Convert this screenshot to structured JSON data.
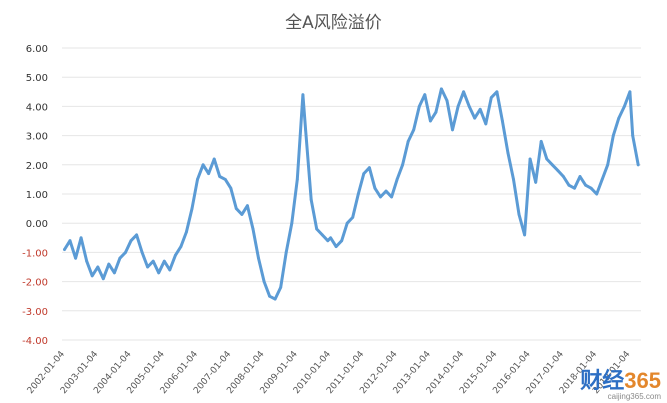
{
  "chart_data": {
    "type": "line",
    "title": "全A风险溢价",
    "xlabel": "",
    "ylabel": "",
    "ylim": [
      -4,
      6
    ],
    "yticks": [
      "6.00",
      "5.00",
      "4.00",
      "3.00",
      "2.00",
      "1.00",
      "0.00",
      "-1.00",
      "-2.00",
      "-3.00",
      "-4.00"
    ],
    "negative_tick_color": "#c0392b",
    "xticks": [
      "2002-01-04",
      "2003-01-04",
      "2004-01-04",
      "2005-01-04",
      "2006-01-04",
      "2007-01-04",
      "2008-01-04",
      "2009-01-04",
      "2010-01-04",
      "2011-01-04",
      "2012-01-04",
      "2013-01-04",
      "2014-01-04",
      "2015-01-04",
      "2016-01-04",
      "2017-01-04",
      "2018-01-04",
      "2019-01-04"
    ],
    "grid": true,
    "legend": "none",
    "line_color": "#5b9bd5",
    "series": [
      {
        "points": [
          [
            "2002-01",
            -0.9
          ],
          [
            "2002-03",
            -0.6
          ],
          [
            "2002-05",
            -1.2
          ],
          [
            "2002-07",
            -0.5
          ],
          [
            "2002-09",
            -1.3
          ],
          [
            "2002-11",
            -1.8
          ],
          [
            "2003-01",
            -1.5
          ],
          [
            "2003-03",
            -1.9
          ],
          [
            "2003-05",
            -1.4
          ],
          [
            "2003-07",
            -1.7
          ],
          [
            "2003-09",
            -1.2
          ],
          [
            "2003-11",
            -1.0
          ],
          [
            "2004-01",
            -0.6
          ],
          [
            "2004-03",
            -0.4
          ],
          [
            "2004-05",
            -1.0
          ],
          [
            "2004-07",
            -1.5
          ],
          [
            "2004-09",
            -1.3
          ],
          [
            "2004-11",
            -1.7
          ],
          [
            "2005-01",
            -1.3
          ],
          [
            "2005-03",
            -1.6
          ],
          [
            "2005-05",
            -1.1
          ],
          [
            "2005-07",
            -0.8
          ],
          [
            "2005-09",
            -0.3
          ],
          [
            "2005-11",
            0.5
          ],
          [
            "2006-01",
            1.5
          ],
          [
            "2006-03",
            2.0
          ],
          [
            "2006-05",
            1.7
          ],
          [
            "2006-07",
            2.2
          ],
          [
            "2006-09",
            1.6
          ],
          [
            "2006-11",
            1.5
          ],
          [
            "2007-01",
            1.2
          ],
          [
            "2007-03",
            0.5
          ],
          [
            "2007-05",
            0.3
          ],
          [
            "2007-07",
            0.6
          ],
          [
            "2007-09",
            -0.2
          ],
          [
            "2007-11",
            -1.2
          ],
          [
            "2008-01",
            -2.0
          ],
          [
            "2008-03",
            -2.5
          ],
          [
            "2008-05",
            -2.6
          ],
          [
            "2008-07",
            -2.2
          ],
          [
            "2008-09",
            -1.0
          ],
          [
            "2008-11",
            0.0
          ],
          [
            "2009-01",
            1.5
          ],
          [
            "2009-03",
            4.4
          ],
          [
            "2009-04",
            3.2
          ],
          [
            "2009-06",
            0.8
          ],
          [
            "2009-08",
            -0.2
          ],
          [
            "2009-10",
            -0.4
          ],
          [
            "2009-12",
            -0.6
          ],
          [
            "2010-01",
            -0.5
          ],
          [
            "2010-03",
            -0.8
          ],
          [
            "2010-05",
            -0.6
          ],
          [
            "2010-07",
            0.0
          ],
          [
            "2010-09",
            0.2
          ],
          [
            "2010-11",
            1.0
          ],
          [
            "2011-01",
            1.7
          ],
          [
            "2011-03",
            1.9
          ],
          [
            "2011-05",
            1.2
          ],
          [
            "2011-07",
            0.9
          ],
          [
            "2011-09",
            1.1
          ],
          [
            "2011-11",
            0.9
          ],
          [
            "2012-01",
            1.5
          ],
          [
            "2012-03",
            2.0
          ],
          [
            "2012-05",
            2.8
          ],
          [
            "2012-07",
            3.2
          ],
          [
            "2012-09",
            4.0
          ],
          [
            "2012-11",
            4.4
          ],
          [
            "2013-01",
            3.5
          ],
          [
            "2013-03",
            3.8
          ],
          [
            "2013-05",
            4.6
          ],
          [
            "2013-07",
            4.2
          ],
          [
            "2013-09",
            3.2
          ],
          [
            "2013-11",
            4.0
          ],
          [
            "2014-01",
            4.5
          ],
          [
            "2014-03",
            4.0
          ],
          [
            "2014-05",
            3.6
          ],
          [
            "2014-07",
            3.9
          ],
          [
            "2014-09",
            3.4
          ],
          [
            "2014-11",
            4.3
          ],
          [
            "2015-01",
            4.5
          ],
          [
            "2015-03",
            3.5
          ],
          [
            "2015-05",
            2.4
          ],
          [
            "2015-07",
            1.5
          ],
          [
            "2015-09",
            0.3
          ],
          [
            "2015-11",
            -0.4
          ],
          [
            "2016-01",
            2.2
          ],
          [
            "2016-03",
            1.4
          ],
          [
            "2016-05",
            2.8
          ],
          [
            "2016-07",
            2.2
          ],
          [
            "2016-09",
            2.0
          ],
          [
            "2016-11",
            1.8
          ],
          [
            "2017-01",
            1.6
          ],
          [
            "2017-03",
            1.3
          ],
          [
            "2017-05",
            1.2
          ],
          [
            "2017-07",
            1.6
          ],
          [
            "2017-09",
            1.3
          ],
          [
            "2017-11",
            1.2
          ],
          [
            "2018-01",
            1.0
          ],
          [
            "2018-03",
            1.5
          ],
          [
            "2018-05",
            2.0
          ],
          [
            "2018-07",
            3.0
          ],
          [
            "2018-09",
            3.6
          ],
          [
            "2018-11",
            4.0
          ],
          [
            "2019-01",
            4.5
          ],
          [
            "2019-02",
            3.0
          ],
          [
            "2019-04",
            2.0
          ]
        ]
      }
    ]
  },
  "watermark": {
    "brand": "财经",
    "number": "365",
    "url": "caijing365.com"
  }
}
